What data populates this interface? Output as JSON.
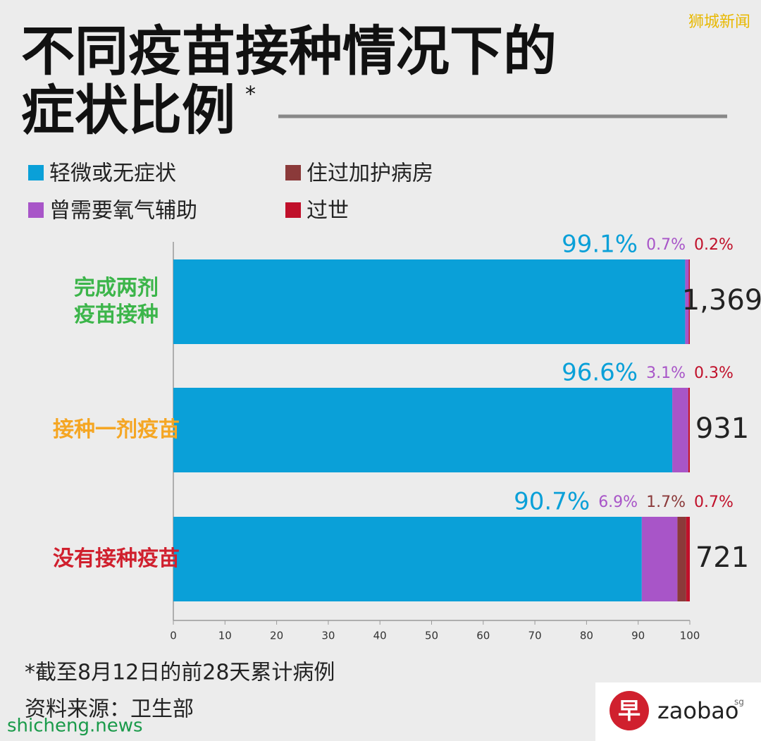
{
  "chart_data": {
    "type": "stacked-bar-horizontal",
    "title_lines": [
      "不同疫苗接种情况下的",
      "症状比例"
    ],
    "title_mark": "*",
    "categories": [
      "完成两剂\n疫苗接种",
      "接种一剂疫苗",
      "没有接种疫苗"
    ],
    "category_colors": [
      "#3cb54a",
      "#f5a623",
      "#d0202e"
    ],
    "series": [
      {
        "name": "轻微或无症状",
        "color": "#0aa0d8",
        "values": [
          99.1,
          96.6,
          90.7
        ],
        "value_labels": [
          "99.1%",
          "96.6%",
          "90.7%"
        ]
      },
      {
        "name": "曾需要氧气辅助",
        "color": "#a855c8",
        "values": [
          0.7,
          3.1,
          6.9
        ],
        "value_labels": [
          "0.7%",
          "3.1%",
          "6.9%"
        ]
      },
      {
        "name": "住过加护病房",
        "color": "#8b3a3a",
        "values": [
          null,
          null,
          1.7
        ],
        "value_labels": [
          null,
          null,
          "1.7%"
        ]
      },
      {
        "name": "过世",
        "color": "#c0102a",
        "values": [
          0.2,
          0.3,
          0.7
        ],
        "value_labels": [
          "0.2%",
          "0.3%",
          "0.7%"
        ]
      }
    ],
    "counts": {
      "values": [
        1369,
        931,
        721
      ],
      "value_labels": [
        "1,369",
        "931",
        "721"
      ]
    },
    "xlim": [
      0,
      100
    ],
    "xticks": [
      0,
      10,
      20,
      30,
      40,
      50,
      60,
      70,
      80,
      90,
      100
    ],
    "footnote": "*截至8月12日的前28天累计病例",
    "source": "资料来源：卫生部"
  },
  "watermarks": {
    "top_right": "狮城新闻",
    "bottom_left": "shicheng.news",
    "logo_char": "早",
    "logo_text": "zaobao",
    "logo_sup": "sg"
  }
}
